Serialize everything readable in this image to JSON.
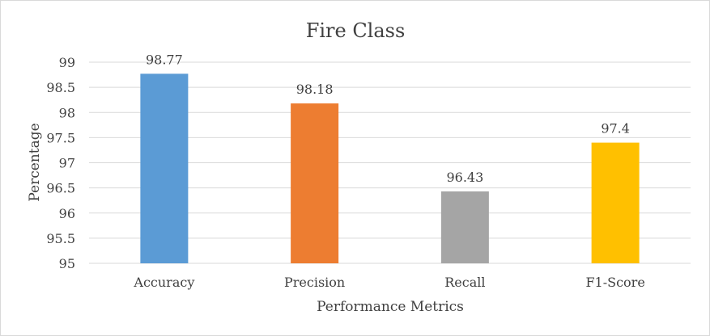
{
  "chart_data": {
    "type": "bar",
    "title": "Fire Class",
    "xlabel": "Performance Metrics",
    "ylabel": "Percentage",
    "categories": [
      "Accuracy",
      "Precision",
      "Recall",
      "F1-Score"
    ],
    "values": [
      98.77,
      98.18,
      96.43,
      97.4
    ],
    "value_labels": [
      "98.77",
      "98.18",
      "96.43",
      "97.4"
    ],
    "colors": [
      "#5b9bd5",
      "#ed7d31",
      "#a5a5a5",
      "#ffc000"
    ],
    "ylim": [
      95,
      99
    ],
    "yticks": [
      95,
      95.5,
      96,
      96.5,
      97,
      97.5,
      98,
      98.5,
      99
    ],
    "ytick_labels": [
      "95",
      "95.5",
      "96",
      "96.5",
      "97",
      "97.5",
      "98",
      "98.5",
      "99"
    ],
    "grid": true,
    "legend": "none"
  }
}
